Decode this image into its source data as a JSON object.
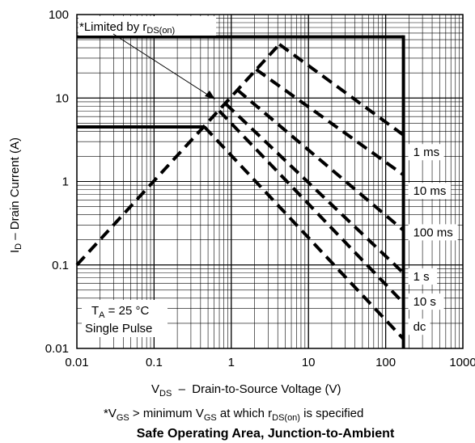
{
  "chart_data": {
    "type": "line",
    "title": "Safe Operating Area, Junction-to-Ambient",
    "xlabel": {
      "main": "V",
      "sub": "DS",
      "rest": "  –  Drain-to-Source Voltage (V)"
    },
    "ylabel": {
      "main": "I",
      "sub": "D",
      "rest": " – Drain Current (A)"
    },
    "x_scale": "log",
    "y_scale": "log",
    "xlim": [
      0.01,
      1000
    ],
    "ylim": [
      0.01,
      100
    ],
    "x_ticks": [
      "0.01",
      "0.1",
      "1",
      "10",
      "100",
      "1000"
    ],
    "y_ticks": [
      "0.01",
      "0.1",
      "1",
      "10",
      "100"
    ],
    "grid": true,
    "limits": {
      "current_limit": 54,
      "voltage_limit": 170,
      "pulsed_current": 4.5
    },
    "rds_line": {
      "x": [
        0.01,
        4.2
      ],
      "y": [
        0.1,
        44
      ]
    },
    "series": [
      {
        "name": "1 ms",
        "x": [
          4.2,
          170
        ],
        "y": [
          44,
          3.6
        ]
      },
      {
        "name": "10 ms",
        "x": [
          2.1,
          170
        ],
        "y": [
          22,
          1.2
        ]
      },
      {
        "name": "100 ms",
        "x": [
          1.2,
          170
        ],
        "y": [
          12.5,
          0.26
        ]
      },
      {
        "name": "1 s",
        "x": [
          0.85,
          170
        ],
        "y": [
          8.5,
          0.08
        ]
      },
      {
        "name": "10 s",
        "x": [
          0.7,
          170
        ],
        "y": [
          7.0,
          0.035
        ]
      },
      {
        "name": "dc",
        "x": [
          0.45,
          170
        ],
        "y": [
          4.5,
          0.013
        ]
      }
    ],
    "annotations": {
      "limited_text": "*Limited by r",
      "limited_sub": "DS(on)",
      "ta_main": "T",
      "ta_sub": "A",
      "ta_rest": " = 25 °C",
      "single_pulse": "Single Pulse",
      "footnote": {
        "v1": "*V",
        "s1": "GS",
        "t1": " > minimum V",
        "s2": "GS",
        "t2": " at which r",
        "s3": "DS(on)",
        "t3": " is specified"
      }
    }
  }
}
